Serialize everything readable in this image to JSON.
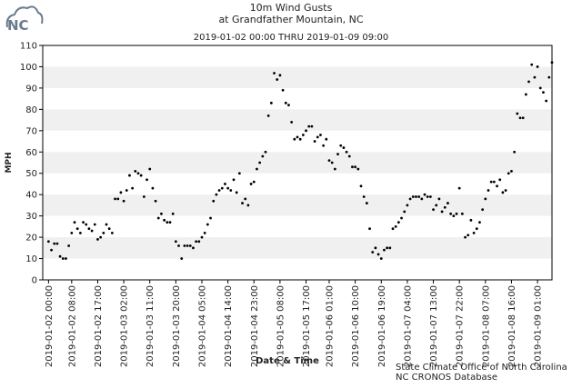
{
  "logo": "NC",
  "chart_data": {
    "type": "scatter",
    "title": "10m Wind Gusts",
    "subtitle": "at Grandfather Mountain, NC",
    "date_range": "2019-01-02 00:00 THRU 2019-01-09 09:00",
    "y_label": "MPH",
    "x_label": "Date & Time",
    "credit": [
      "State Climate Office of North Carolina",
      "NC CRONOS Database"
    ],
    "color": "#000000",
    "grid": "bands",
    "band_color": "#f0f0f0",
    "xlim": [
      "2019-01-01 22:00",
      "2019-01-09 06:00"
    ],
    "xticks": [
      "2019-01-02 00:00",
      "2019-01-02 08:00",
      "2019-01-02 17:00",
      "2019-01-03 02:00",
      "2019-01-03 11:00",
      "2019-01-03 20:00",
      "2019-01-04 05:00",
      "2019-01-04 14:00",
      "2019-01-04 23:00",
      "2019-01-05 08:00",
      "2019-01-05 17:00",
      "2019-01-06 01:00",
      "2019-01-06 10:00",
      "2019-01-06 19:00",
      "2019-01-07 04:00",
      "2019-01-07 13:00",
      "2019-01-07 22:00",
      "2019-01-08 07:00",
      "2019-01-08 16:00",
      "2019-01-09 01:00"
    ],
    "ylim": [
      0,
      110
    ],
    "yticks": [
      0,
      10,
      20,
      30,
      40,
      50,
      60,
      70,
      80,
      90,
      100,
      110
    ],
    "x": [
      "2019-01-02 00:00",
      "2019-01-02 01:00",
      "2019-01-02 02:00",
      "2019-01-02 03:00",
      "2019-01-02 04:00",
      "2019-01-02 05:00",
      "2019-01-02 06:00",
      "2019-01-02 07:00",
      "2019-01-02 08:00",
      "2019-01-02 09:00",
      "2019-01-02 10:00",
      "2019-01-02 11:00",
      "2019-01-02 12:00",
      "2019-01-02 13:00",
      "2019-01-02 14:00",
      "2019-01-02 15:00",
      "2019-01-02 16:00",
      "2019-01-02 17:00",
      "2019-01-02 18:00",
      "2019-01-02 19:00",
      "2019-01-02 20:00",
      "2019-01-02 21:00",
      "2019-01-02 22:00",
      "2019-01-02 23:00",
      "2019-01-03 00:00",
      "2019-01-03 01:00",
      "2019-01-03 02:00",
      "2019-01-03 03:00",
      "2019-01-03 04:00",
      "2019-01-03 05:00",
      "2019-01-03 06:00",
      "2019-01-03 07:00",
      "2019-01-03 08:00",
      "2019-01-03 09:00",
      "2019-01-03 10:00",
      "2019-01-03 11:00",
      "2019-01-03 12:00",
      "2019-01-03 13:00",
      "2019-01-03 14:00",
      "2019-01-03 15:00",
      "2019-01-03 16:00",
      "2019-01-03 17:00",
      "2019-01-03 18:00",
      "2019-01-03 19:00",
      "2019-01-03 20:00",
      "2019-01-03 21:00",
      "2019-01-03 22:00",
      "2019-01-03 23:00",
      "2019-01-04 00:00",
      "2019-01-04 01:00",
      "2019-01-04 02:00",
      "2019-01-04 03:00",
      "2019-01-04 04:00",
      "2019-01-04 05:00",
      "2019-01-04 06:00",
      "2019-01-04 07:00",
      "2019-01-04 08:00",
      "2019-01-04 09:00",
      "2019-01-04 10:00",
      "2019-01-04 11:00",
      "2019-01-04 12:00",
      "2019-01-04 13:00",
      "2019-01-04 14:00",
      "2019-01-04 15:00",
      "2019-01-04 16:00",
      "2019-01-04 17:00",
      "2019-01-04 18:00",
      "2019-01-04 19:00",
      "2019-01-04 20:00",
      "2019-01-04 21:00",
      "2019-01-04 22:00",
      "2019-01-04 23:00",
      "2019-01-05 00:00",
      "2019-01-05 01:00",
      "2019-01-05 02:00",
      "2019-01-05 03:00",
      "2019-01-05 04:00",
      "2019-01-05 05:00",
      "2019-01-05 06:00",
      "2019-01-05 07:00",
      "2019-01-05 08:00",
      "2019-01-05 09:00",
      "2019-01-05 10:00",
      "2019-01-05 11:00",
      "2019-01-05 12:00",
      "2019-01-05 13:00",
      "2019-01-05 14:00",
      "2019-01-05 15:00",
      "2019-01-05 16:00",
      "2019-01-05 17:00",
      "2019-01-05 18:00",
      "2019-01-05 19:00",
      "2019-01-05 20:00",
      "2019-01-05 21:00",
      "2019-01-05 22:00",
      "2019-01-05 23:00",
      "2019-01-06 00:00",
      "2019-01-06 01:00",
      "2019-01-06 02:00",
      "2019-01-06 03:00",
      "2019-01-06 04:00",
      "2019-01-06 05:00",
      "2019-01-06 06:00",
      "2019-01-06 07:00",
      "2019-01-06 08:00",
      "2019-01-06 09:00",
      "2019-01-06 10:00",
      "2019-01-06 11:00",
      "2019-01-06 12:00",
      "2019-01-06 13:00",
      "2019-01-06 14:00",
      "2019-01-06 15:00",
      "2019-01-06 16:00",
      "2019-01-06 17:00",
      "2019-01-06 18:00",
      "2019-01-06 19:00",
      "2019-01-06 20:00",
      "2019-01-06 21:00",
      "2019-01-06 22:00",
      "2019-01-06 23:00",
      "2019-01-07 00:00",
      "2019-01-07 01:00",
      "2019-01-07 02:00",
      "2019-01-07 03:00",
      "2019-01-07 04:00",
      "2019-01-07 05:00",
      "2019-01-07 06:00",
      "2019-01-07 07:00",
      "2019-01-07 08:00",
      "2019-01-07 09:00",
      "2019-01-07 10:00",
      "2019-01-07 11:00",
      "2019-01-07 12:00",
      "2019-01-07 13:00",
      "2019-01-07 14:00",
      "2019-01-07 15:00",
      "2019-01-07 16:00",
      "2019-01-07 17:00",
      "2019-01-07 18:00",
      "2019-01-07 19:00",
      "2019-01-07 20:00",
      "2019-01-07 21:00",
      "2019-01-07 22:00",
      "2019-01-07 23:00",
      "2019-01-08 00:00",
      "2019-01-08 01:00",
      "2019-01-08 02:00",
      "2019-01-08 03:00",
      "2019-01-08 04:00",
      "2019-01-08 05:00",
      "2019-01-08 06:00",
      "2019-01-08 07:00",
      "2019-01-08 08:00",
      "2019-01-08 09:00",
      "2019-01-08 10:00",
      "2019-01-08 11:00",
      "2019-01-08 12:00",
      "2019-01-08 13:00",
      "2019-01-08 14:00",
      "2019-01-08 15:00",
      "2019-01-08 16:00",
      "2019-01-08 17:00",
      "2019-01-08 18:00",
      "2019-01-08 19:00",
      "2019-01-08 20:00",
      "2019-01-08 21:00",
      "2019-01-08 22:00",
      "2019-01-08 23:00",
      "2019-01-09 00:00",
      "2019-01-09 01:00",
      "2019-01-09 02:00",
      "2019-01-09 03:00",
      "2019-01-09 04:00",
      "2019-01-09 05:00",
      "2019-01-09 06:00"
    ],
    "values": [
      18,
      14,
      17,
      17,
      11,
      10,
      10,
      16,
      22,
      27,
      24,
      22,
      27,
      26,
      24,
      23,
      26,
      19,
      20,
      22,
      26,
      24,
      22,
      38,
      38,
      41,
      37,
      42,
      49,
      43,
      51,
      50,
      49,
      39,
      47,
      52,
      43,
      37,
      29,
      31,
      28,
      27,
      27,
      31,
      18,
      16,
      10,
      16,
      16,
      16,
      15,
      18,
      18,
      20,
      22,
      26,
      29,
      37,
      40,
      42,
      43,
      45,
      43,
      42,
      47,
      41,
      50,
      36,
      38,
      35,
      45,
      46,
      52,
      55,
      58,
      60,
      77,
      83,
      97,
      94,
      96,
      89,
      83,
      82,
      74,
      66,
      67,
      66,
      68,
      70,
      72,
      72,
      65,
      67,
      68,
      63,
      66,
      56,
      55,
      52,
      59,
      63,
      62,
      60,
      58,
      53,
      53,
      52,
      44,
      39,
      36,
      24,
      13,
      15,
      12,
      10,
      14,
      15,
      15,
      24,
      25,
      27,
      29,
      32,
      35,
      38,
      39,
      39,
      39,
      38,
      40,
      39,
      39,
      33,
      35,
      38,
      32,
      34,
      36,
      31,
      30,
      31,
      43,
      31,
      20,
      21,
      28,
      22,
      24,
      27,
      33,
      38,
      42,
      46,
      46,
      44,
      47,
      41,
      42,
      50,
      51,
      60,
      78,
      76,
      76,
      87,
      93,
      101,
      95,
      100,
      90,
      88,
      84,
      95,
      102
    ]
  }
}
